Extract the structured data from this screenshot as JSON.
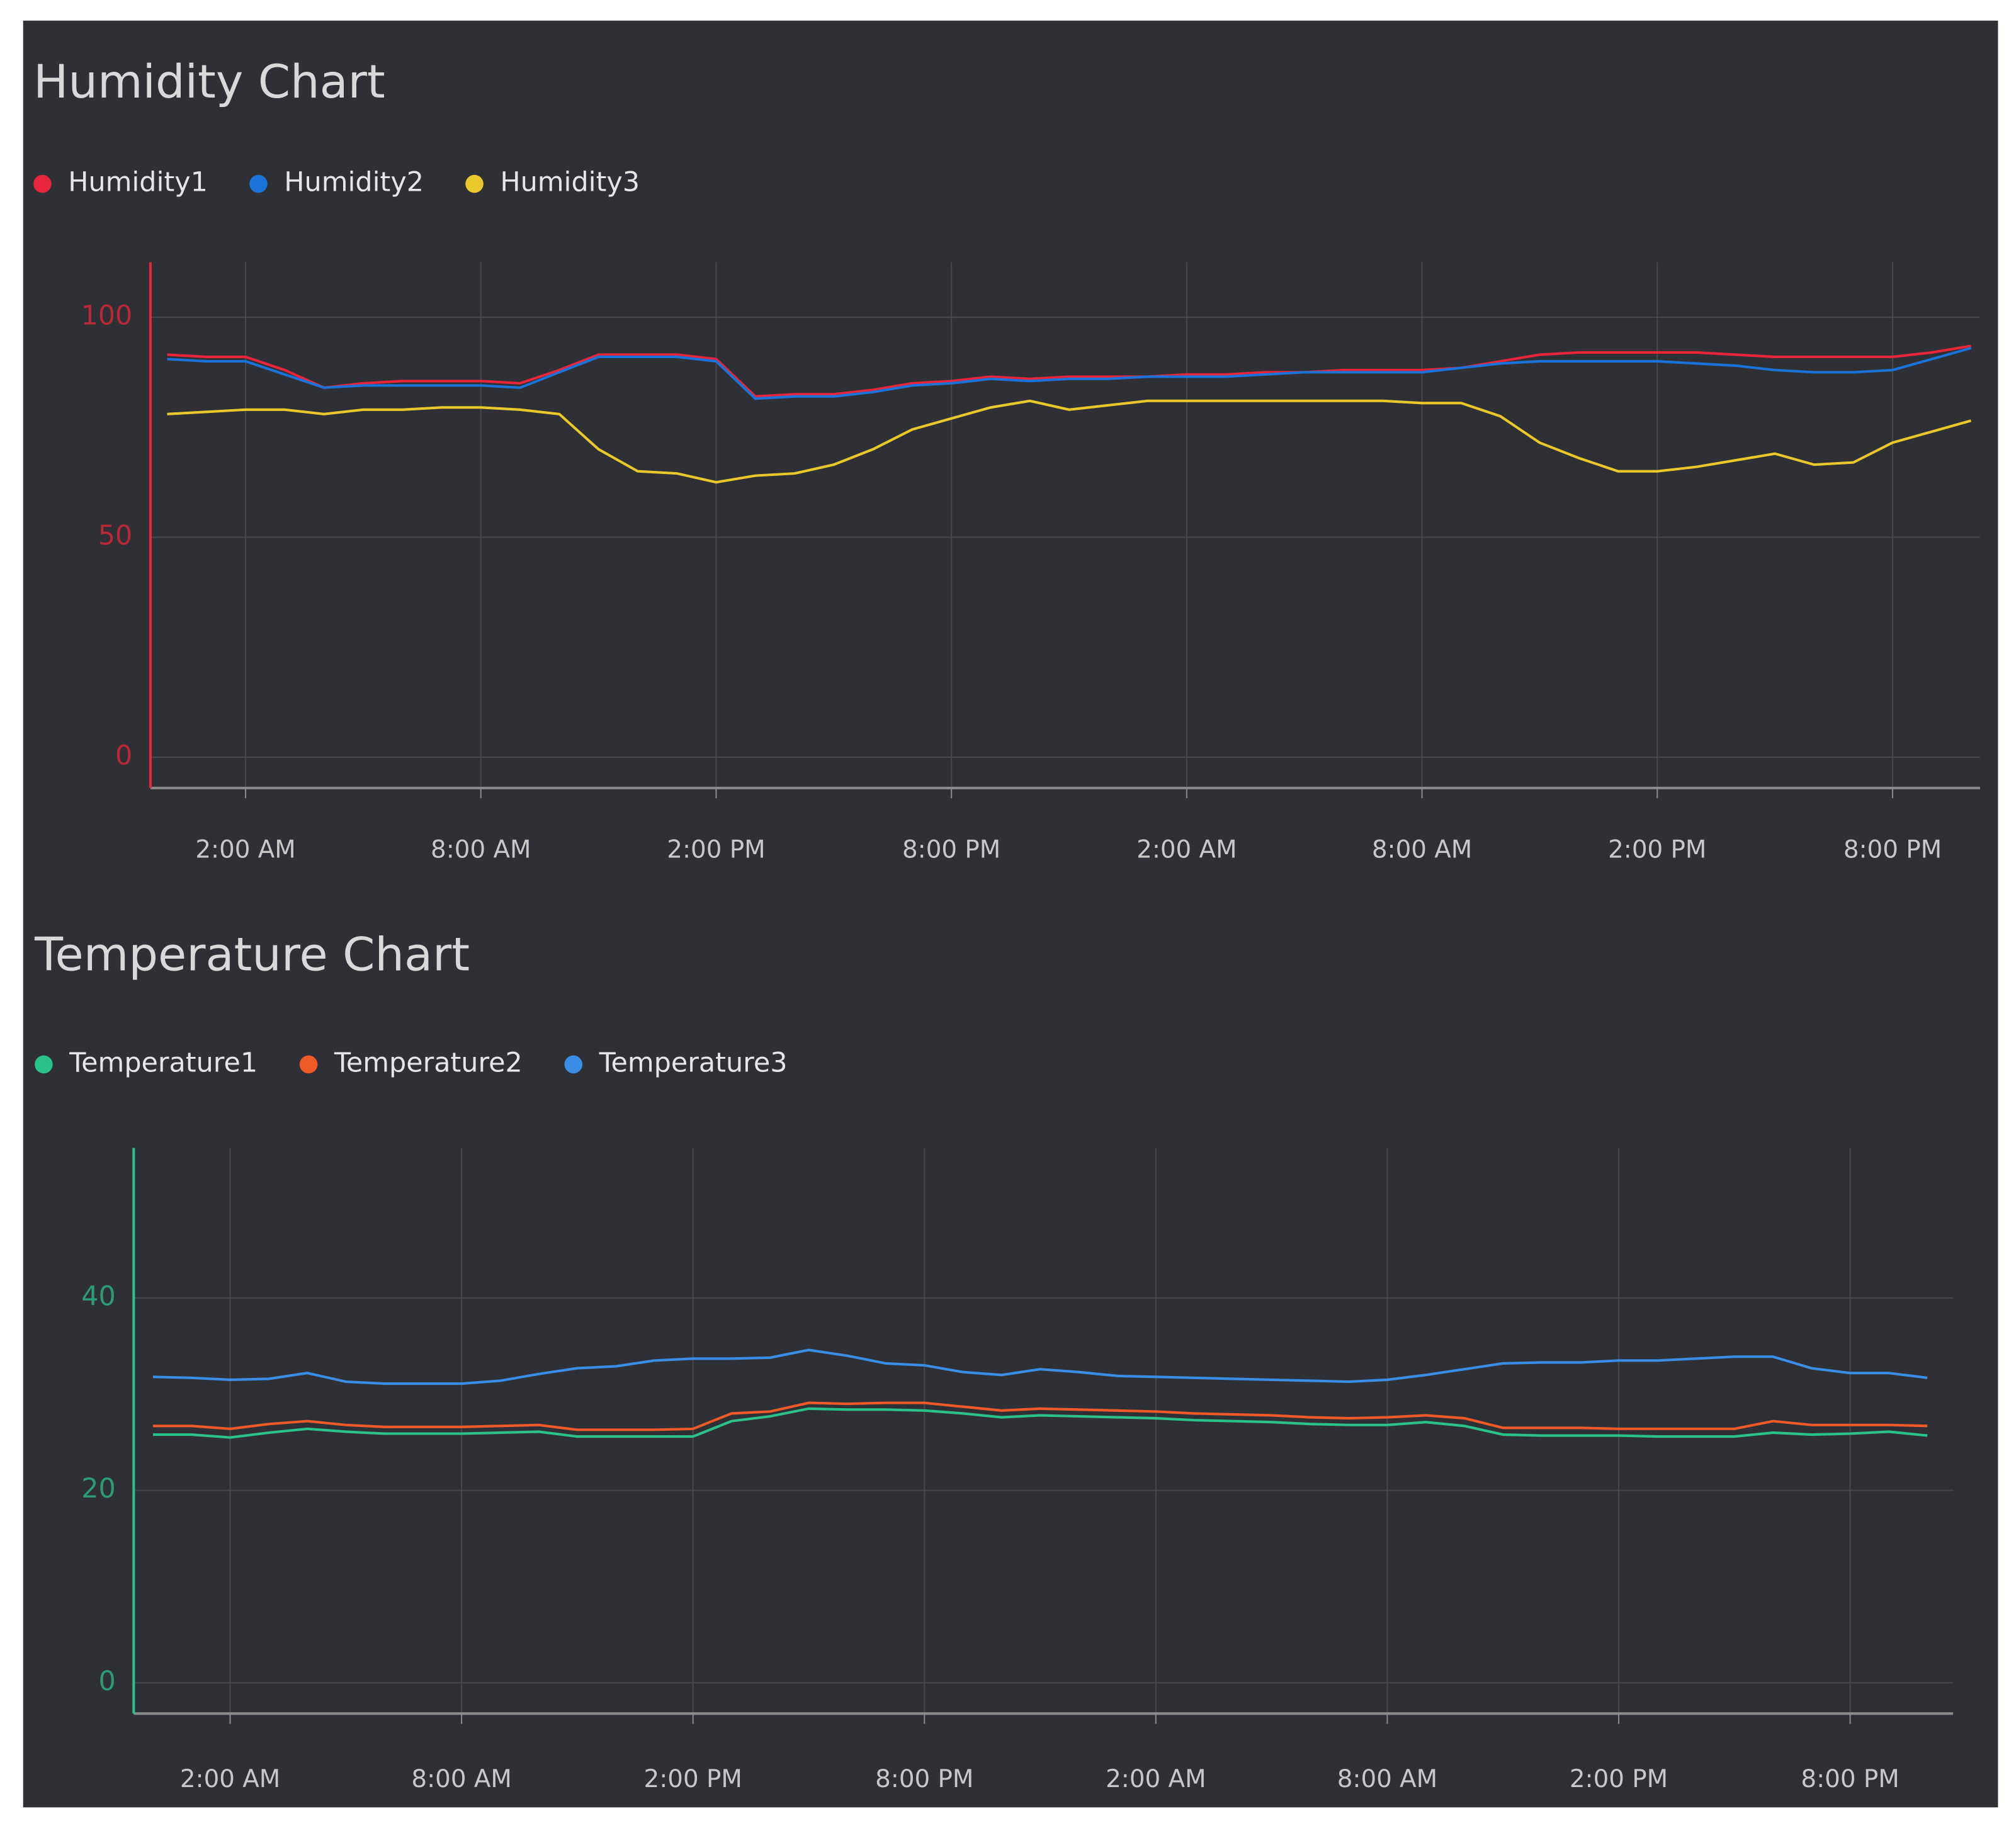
{
  "chart_data": [
    {
      "type": "line",
      "title": "Humidity Chart",
      "categories": [
        null,
        null,
        "2:00 AM",
        null,
        null,
        null,
        null,
        null,
        "8:00 AM",
        null,
        null,
        null,
        null,
        null,
        "2:00 PM",
        null,
        null,
        null,
        null,
        null,
        "8:00 PM",
        null,
        null,
        null,
        null,
        null,
        "2:00 AM",
        null,
        null,
        null,
        null,
        null,
        "8:00 AM",
        null,
        null,
        null,
        null,
        null,
        "2:00 PM",
        null,
        null,
        null,
        null,
        null,
        "8:00 PM",
        null,
        null
      ],
      "series": [
        {
          "name": "Humidity1",
          "color": "#e8253a",
          "values": [
            91.5,
            91,
            91,
            88,
            84,
            85,
            85.5,
            85.5,
            85.5,
            85,
            88,
            91.5,
            91.5,
            91.5,
            90.5,
            82,
            82.5,
            82.5,
            83.5,
            85,
            85.5,
            86.5,
            86,
            86.5,
            86.5,
            86.5,
            87,
            87,
            87.5,
            87.5,
            88,
            88,
            88,
            88.5,
            90,
            91.5,
            92,
            92,
            92,
            92,
            91.5,
            91,
            91,
            91,
            91,
            92,
            93.5
          ]
        },
        {
          "name": "Humidity2",
          "color": "#1a73d9",
          "values": [
            90.5,
            90,
            90,
            87,
            84,
            84.5,
            84.5,
            84.5,
            84.5,
            84,
            87.5,
            91,
            91,
            91,
            90,
            81.5,
            82,
            82,
            83,
            84.5,
            85,
            86,
            85.5,
            86,
            86,
            86.5,
            86.5,
            86.5,
            87,
            87.5,
            87.5,
            87.5,
            87.5,
            88.5,
            89.5,
            90,
            90,
            90,
            90,
            89.5,
            89,
            88,
            87.5,
            87.5,
            88,
            90.5,
            93
          ]
        },
        {
          "name": "Humidity3",
          "color": "#e8c82a",
          "values": [
            78,
            78.5,
            79,
            79,
            78,
            79,
            79,
            79.5,
            79.5,
            79,
            78,
            70,
            65,
            64.5,
            62.5,
            64,
            64.5,
            66.5,
            70,
            74.5,
            77,
            79.5,
            81,
            79,
            80,
            81,
            81,
            81,
            81,
            81,
            81,
            81,
            80.5,
            80.5,
            77.5,
            71.5,
            68,
            65,
            65,
            66,
            67.5,
            69,
            66.5,
            67,
            71.5,
            74,
            76.5
          ]
        }
      ],
      "ylim": [
        -7,
        112.5
      ],
      "yticks": [
        0,
        50,
        100
      ],
      "grid": true
    },
    {
      "type": "line",
      "title": "Temperature Chart",
      "categories": [
        null,
        null,
        "2:00 AM",
        null,
        null,
        null,
        null,
        null,
        "8:00 AM",
        null,
        null,
        null,
        null,
        null,
        "2:00 PM",
        null,
        null,
        null,
        null,
        null,
        "8:00 PM",
        null,
        null,
        null,
        null,
        null,
        "2:00 AM",
        null,
        null,
        null,
        null,
        null,
        "8:00 AM",
        null,
        null,
        null,
        null,
        null,
        "2:00 PM",
        null,
        null,
        null,
        null,
        null,
        "8:00 PM",
        null,
        null
      ],
      "series": [
        {
          "name": "Temperature1",
          "color": "#2bc28a",
          "values": [
            25.8,
            25.8,
            25.5,
            26,
            26.4,
            26.1,
            25.9,
            25.9,
            25.9,
            26,
            26.1,
            25.6,
            25.6,
            25.6,
            25.6,
            27.2,
            27.7,
            28.5,
            28.4,
            28.4,
            28.3,
            28,
            27.6,
            27.8,
            27.7,
            27.6,
            27.5,
            27.3,
            27.2,
            27.1,
            26.9,
            26.8,
            26.8,
            27.1,
            26.7,
            25.8,
            25.7,
            25.7,
            25.7,
            25.6,
            25.6,
            25.6,
            26,
            25.8,
            25.9,
            26.1,
            25.7
          ]
        },
        {
          "name": "Temperature2",
          "color": "#f05a28",
          "values": [
            26.7,
            26.7,
            26.4,
            26.9,
            27.2,
            26.8,
            26.6,
            26.6,
            26.6,
            26.7,
            26.8,
            26.3,
            26.3,
            26.3,
            26.4,
            28,
            28.2,
            29.1,
            29,
            29.1,
            29.1,
            28.7,
            28.3,
            28.5,
            28.4,
            28.3,
            28.2,
            28,
            27.9,
            27.8,
            27.6,
            27.5,
            27.6,
            27.8,
            27.5,
            26.5,
            26.5,
            26.5,
            26.4,
            26.4,
            26.4,
            26.4,
            27.2,
            26.8,
            26.8,
            26.8,
            26.7
          ]
        },
        {
          "name": "Temperature3",
          "color": "#3a8ee6",
          "values": [
            31.8,
            31.7,
            31.5,
            31.6,
            32.2,
            31.3,
            31.1,
            31.1,
            31.1,
            31.4,
            32.1,
            32.7,
            32.9,
            33.5,
            33.7,
            33.7,
            33.8,
            34.6,
            34,
            33.2,
            33,
            32.3,
            32,
            32.6,
            32.3,
            31.9,
            31.8,
            31.7,
            31.6,
            31.5,
            31.4,
            31.3,
            31.5,
            32,
            32.6,
            33.2,
            33.3,
            33.3,
            33.5,
            33.5,
            33.7,
            33.9,
            33.9,
            32.7,
            32.2,
            32.2,
            31.7
          ]
        }
      ],
      "ylim": [
        -3.2,
        55.6
      ],
      "yticks": [
        0,
        20,
        40
      ],
      "grid": true
    }
  ]
}
